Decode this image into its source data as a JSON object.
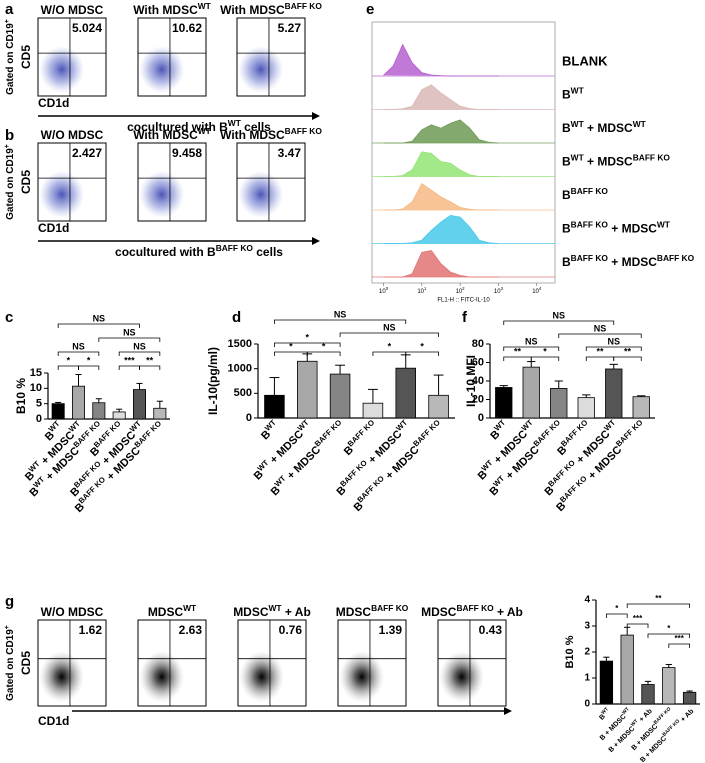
{
  "flow_panels": [
    {
      "panel": "a",
      "y_label": [
        "Gated on CD19",
        {
          "sup": "+"
        }
      ],
      "y_marker": "CD5",
      "x_marker": "CD1d",
      "caption": [
        "cocultured with B",
        {
          "sup": "WT"
        },
        " cells"
      ],
      "plots": [
        {
          "title": "W/O MDSC",
          "value": 5.024
        },
        {
          "title": [
            "With MDSC",
            {
              "sup": "WT"
            }
          ],
          "value": 10.62
        },
        {
          "title": [
            "With MDSC",
            {
              "sup": "BAFF KO"
            }
          ],
          "value": 5.27
        }
      ]
    },
    {
      "panel": "b",
      "y_label": [
        "Gated on CD19",
        {
          "sup": "+"
        }
      ],
      "y_marker": "CD5",
      "x_marker": "CD1d",
      "caption": [
        "cocultured with B",
        {
          "sup": "BAFF KO"
        },
        " cells"
      ],
      "plots": [
        {
          "title": "W/O MDSC",
          "value": 2.427
        },
        {
          "title": [
            "With MDSC",
            {
              "sup": "WT"
            }
          ],
          "value": 9.458
        },
        {
          "title": [
            "With MDSC",
            {
              "sup": "BAFF KO"
            }
          ],
          "value": 3.47
        }
      ]
    },
    {
      "panel": "g",
      "y_label": [
        "Gated on CD19",
        {
          "sup": "+"
        }
      ],
      "y_marker": "CD5",
      "x_marker": "CD1d",
      "plots": [
        {
          "title": "W/O MDSC",
          "value": 1.62
        },
        {
          "title": [
            "MDSC",
            {
              "sup": "WT"
            }
          ],
          "value": 2.63
        },
        {
          "title": [
            "MDSC",
            {
              "sup": "WT"
            },
            " + Ab"
          ],
          "value": 0.76
        },
        {
          "title": [
            "MDSC",
            {
              "sup": "BAFF KO"
            }
          ],
          "value": 1.39
        },
        {
          "title": [
            "MDSC",
            {
              "sup": "BAFF KO"
            },
            " + Ab"
          ],
          "value": 0.43
        }
      ]
    }
  ],
  "chart_data": [
    {
      "type": "density",
      "panel": "e",
      "x_label": "FL1-H :: FITC-IL-10",
      "xscale": "log",
      "xlim": [
        0.5,
        30000
      ],
      "xticks": [
        {
          "value": 1,
          "label": [
            "10",
            {
              "sup": "0"
            }
          ]
        },
        {
          "value": 10,
          "label": [
            "10",
            {
              "sup": "1"
            }
          ]
        },
        {
          "value": 100,
          "label": [
            "10",
            {
              "sup": "2"
            }
          ]
        },
        {
          "value": 1000,
          "label": [
            "10",
            {
              "sup": "3"
            }
          ]
        },
        {
          "value": 10000,
          "label": [
            "10",
            {
              "sup": "4"
            }
          ]
        }
      ],
      "x": [
        1,
        1.78,
        3.16,
        5.62,
        10,
        17.8,
        31.6,
        56.2,
        100,
        178,
        316,
        562,
        1000
      ],
      "series": [
        {
          "name": "BLANK",
          "color": "#b561cf",
          "values": [
            2,
            30,
            95,
            40,
            10,
            3,
            1,
            0,
            0,
            0,
            0,
            0,
            0
          ]
        },
        {
          "name": [
            "B",
            {
              "sup": "WT"
            }
          ],
          "color": "#d9b9b5",
          "values": [
            0,
            0,
            2,
            10,
            60,
            75,
            50,
            30,
            10,
            3,
            0,
            0,
            0
          ]
        },
        {
          "name": [
            "B",
            {
              "sup": "WT"
            },
            " + MDSC",
            {
              "sup": "WT"
            }
          ],
          "color": "#6f9a55",
          "values": [
            0,
            0,
            0,
            5,
            40,
            55,
            45,
            60,
            70,
            45,
            10,
            2,
            0
          ]
        },
        {
          "name": [
            "B",
            {
              "sup": "WT"
            },
            " + MDSC",
            {
              "sup": "BAFF KO"
            }
          ],
          "color": "#93e575",
          "values": [
            0,
            0,
            3,
            20,
            75,
            70,
            45,
            40,
            20,
            5,
            0,
            0,
            0
          ]
        },
        {
          "name": [
            "B",
            {
              "sup": "BAFF KO"
            }
          ],
          "color": "#f6b985",
          "values": [
            0,
            0,
            3,
            25,
            80,
            60,
            40,
            25,
            8,
            2,
            0,
            0,
            0
          ]
        },
        {
          "name": [
            "B",
            {
              "sup": "BAFF KO"
            },
            " + MDSC",
            {
              "sup": "WT"
            }
          ],
          "color": "#45c9ea",
          "values": [
            0,
            0,
            0,
            2,
            10,
            40,
            65,
            85,
            80,
            50,
            10,
            2,
            0
          ]
        },
        {
          "name": [
            "B",
            {
              "sup": "BAFF KO"
            },
            " + MDSC",
            {
              "sup": "BAFF KO"
            }
          ],
          "color": "#e27373",
          "values": [
            0,
            0,
            0,
            10,
            75,
            80,
            40,
            15,
            5,
            0,
            0,
            0,
            0
          ]
        }
      ]
    },
    {
      "type": "bar",
      "panel": "c",
      "y_label": "B10 %",
      "ylim": [
        0,
        15
      ],
      "yticks": [
        0,
        5,
        10,
        15
      ],
      "categories": [
        [
          "B",
          {
            "sup": "WT"
          }
        ],
        [
          "B",
          {
            "sup": "WT"
          },
          " + MDSC",
          {
            "sup": "WT"
          }
        ],
        [
          "B",
          {
            "sup": "WT"
          },
          " + MDSC",
          {
            "sup": "BAFF KO"
          }
        ],
        [
          "B",
          {
            "sup": "BAFF KO"
          }
        ],
        [
          "B",
          {
            "sup": "BAFF KO"
          },
          " + MDSC",
          {
            "sup": "WT"
          }
        ],
        [
          "B",
          {
            "sup": "BAFF KO"
          },
          " + MDSC",
          {
            "sup": "BAFF KO"
          }
        ]
      ],
      "values": [
        5.0,
        10.7,
        5.3,
        2.3,
        9.6,
        3.5
      ],
      "errors": [
        0.4,
        3.8,
        1.3,
        0.9,
        2.0,
        2.3
      ],
      "colors": [
        "#000000",
        "#a8a8a8",
        "#858585",
        "#dcdcdc",
        "#555555",
        "#b8b8b8"
      ],
      "brackets": [
        {
          "from": 0,
          "to": 4,
          "label": "NS"
        },
        {
          "from": 2,
          "to": 5,
          "label": "NS"
        },
        {
          "from": 0,
          "to": 2,
          "label": "NS"
        },
        {
          "from": 0,
          "to": 1,
          "label": "*"
        },
        {
          "from": 1,
          "to": 2,
          "label": "*"
        },
        {
          "from": 3,
          "to": 5,
          "label": "NS"
        },
        {
          "from": 3,
          "to": 4,
          "label": "***"
        },
        {
          "from": 4,
          "to": 5,
          "label": "**"
        }
      ]
    },
    {
      "type": "bar",
      "panel": "d",
      "y_label": "IL-10(pg/ml)",
      "ylim": [
        0,
        1500
      ],
      "yticks": [
        0,
        500,
        1000,
        1500
      ],
      "categories": [
        [
          "B",
          {
            "sup": "WT"
          }
        ],
        [
          "B",
          {
            "sup": "WT"
          },
          " + MDSC",
          {
            "sup": "WT"
          }
        ],
        [
          "B",
          {
            "sup": "WT"
          },
          " + MDSC",
          {
            "sup": "BAFF KO"
          }
        ],
        [
          "B",
          {
            "sup": "BAFF KO"
          }
        ],
        [
          "B",
          {
            "sup": "BAFF KO"
          },
          " + MDSC",
          {
            "sup": "WT"
          }
        ],
        [
          "B",
          {
            "sup": "BAFF KO"
          },
          " + MDSC",
          {
            "sup": "BAFF KO"
          }
        ]
      ],
      "values": [
        460,
        1150,
        890,
        300,
        1010,
        460
      ],
      "errors": [
        360,
        150,
        180,
        280,
        270,
        410
      ],
      "colors": [
        "#000000",
        "#a8a8a8",
        "#858585",
        "#dcdcdc",
        "#555555",
        "#b8b8b8"
      ],
      "brackets": [
        {
          "from": 0,
          "to": 4,
          "label": "NS"
        },
        {
          "from": 2,
          "to": 5,
          "label": "NS"
        },
        {
          "from": 0,
          "to": 2,
          "label": "*"
        },
        {
          "from": 0,
          "to": 1,
          "label": "*"
        },
        {
          "from": 1,
          "to": 2,
          "label": "*"
        },
        {
          "from": 3,
          "to": 4,
          "label": "*"
        },
        {
          "from": 4,
          "to": 5,
          "label": "*"
        }
      ]
    },
    {
      "type": "bar",
      "panel": "f",
      "y_label": "IL-10 MFI",
      "ylim": [
        0,
        80
      ],
      "yticks": [
        0,
        20,
        40,
        60,
        80
      ],
      "categories": [
        [
          "B",
          {
            "sup": "WT"
          }
        ],
        [
          "B",
          {
            "sup": "WT"
          },
          " + MDSC",
          {
            "sup": "WT"
          }
        ],
        [
          "B",
          {
            "sup": "WT"
          },
          " + MDSC",
          {
            "sup": "BAFF KO"
          }
        ],
        [
          "B",
          {
            "sup": "BAFF KO"
          }
        ],
        [
          "B",
          {
            "sup": "BAFF KO"
          },
          " + MDSC",
          {
            "sup": "WT"
          }
        ],
        [
          "B",
          {
            "sup": "BAFF KO"
          },
          " + MDSC",
          {
            "sup": "BAFF KO"
          }
        ]
      ],
      "values": [
        33,
        55,
        32,
        22,
        53,
        23
      ],
      "errors": [
        2,
        6,
        8,
        3,
        5,
        1
      ],
      "colors": [
        "#000000",
        "#a8a8a8",
        "#858585",
        "#dcdcdc",
        "#555555",
        "#b8b8b8"
      ],
      "brackets": [
        {
          "from": 0,
          "to": 4,
          "label": "NS"
        },
        {
          "from": 2,
          "to": 5,
          "label": "NS"
        },
        {
          "from": 0,
          "to": 2,
          "label": "NS"
        },
        {
          "from": 0,
          "to": 1,
          "label": "**"
        },
        {
          "from": 1,
          "to": 2,
          "label": "*"
        },
        {
          "from": 3,
          "to": 5,
          "label": "NS"
        },
        {
          "from": 3,
          "to": 4,
          "label": "**"
        },
        {
          "from": 4,
          "to": 5,
          "label": "**"
        }
      ]
    },
    {
      "type": "bar",
      "y_label": "B10 %",
      "ylim": [
        0,
        4
      ],
      "yticks": [
        0,
        1,
        2,
        3,
        4
      ],
      "categories": [
        [
          "B",
          {
            "sup": "WT"
          }
        ],
        [
          "B + MDSC",
          {
            "sup": "WT"
          }
        ],
        [
          "B + MDSC",
          {
            "sup": "WT"
          },
          " + Ab"
        ],
        [
          "B + MDSC",
          {
            "sup": "BAFF KO"
          }
        ],
        [
          "B + MDSC",
          {
            "sup": "BAFF KO"
          },
          " + Ab"
        ]
      ],
      "values": [
        1.65,
        2.65,
        0.75,
        1.4,
        0.45
      ],
      "errors": [
        0.15,
        0.3,
        0.12,
        0.12,
        0.05
      ],
      "colors": [
        "#000000",
        "#a8a8a8",
        "#555555",
        "#b8b8b8",
        "#555555"
      ],
      "brackets": [
        {
          "from": 0,
          "to": 1,
          "label": "*"
        },
        {
          "from": 1,
          "to": 2,
          "label": "***"
        },
        {
          "from": 1,
          "to": 4,
          "label": "**"
        },
        {
          "from": 2,
          "to": 4,
          "label": "*"
        },
        {
          "from": 3,
          "to": 4,
          "label": "***"
        }
      ]
    }
  ]
}
